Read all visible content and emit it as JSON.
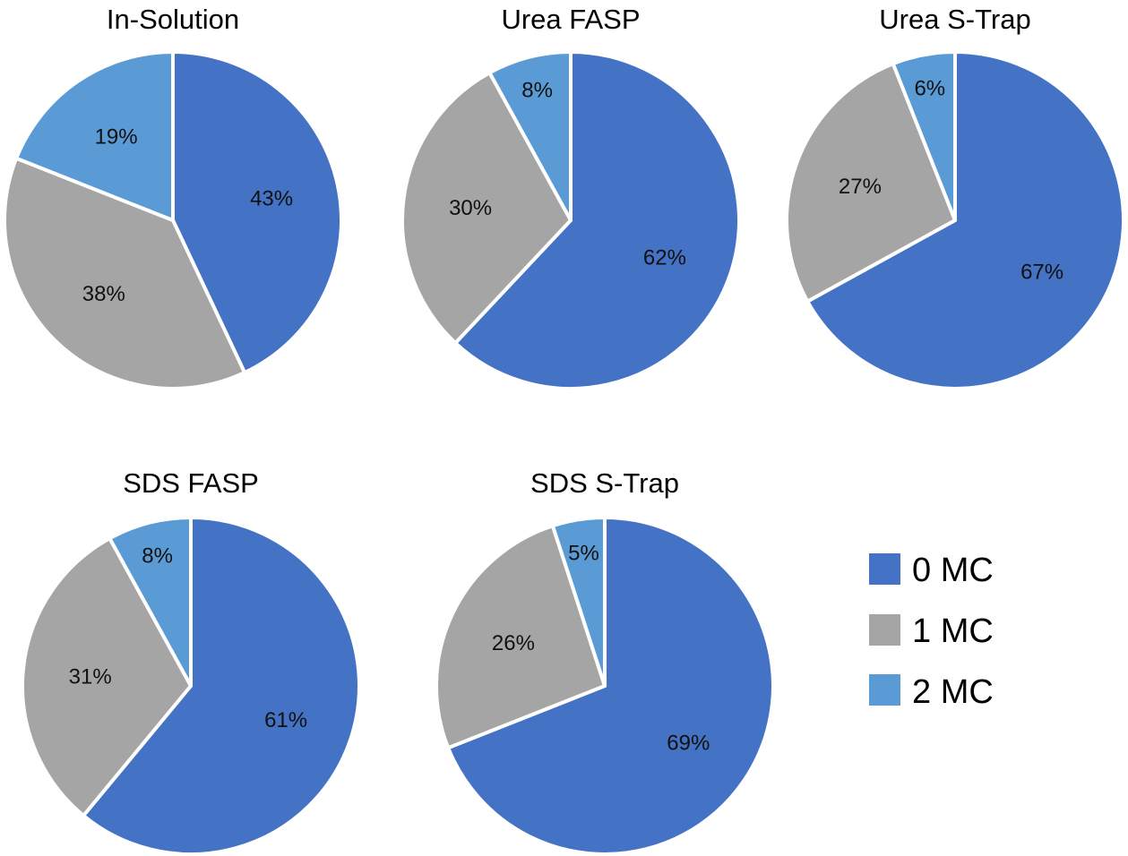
{
  "legend": {
    "items": [
      {
        "label": "0 MC",
        "color": "#4472C4"
      },
      {
        "label": "1 MC",
        "color": "#A5A5A5"
      },
      {
        "label": "2 MC",
        "color": "#5B9BD5"
      }
    ]
  },
  "chart_data": [
    {
      "type": "pie",
      "title": "In-Solution",
      "categories": [
        "0 MC",
        "1 MC",
        "2 MC"
      ],
      "values": [
        43,
        38,
        19
      ],
      "labels": [
        "43%",
        "38%",
        "19%"
      ]
    },
    {
      "type": "pie",
      "title": "Urea FASP",
      "categories": [
        "0 MC",
        "1 MC",
        "2 MC"
      ],
      "values": [
        62,
        30,
        8
      ],
      "labels": [
        "62%",
        "30%",
        "8%"
      ]
    },
    {
      "type": "pie",
      "title": "Urea S-Trap",
      "categories": [
        "0 MC",
        "1 MC",
        "2 MC"
      ],
      "values": [
        67,
        27,
        6
      ],
      "labels": [
        "67%",
        "27%",
        "6%"
      ]
    },
    {
      "type": "pie",
      "title": "SDS FASP",
      "categories": [
        "0 MC",
        "1 MC",
        "2 MC"
      ],
      "values": [
        61,
        31,
        8
      ],
      "labels": [
        "61%",
        "31%",
        "8%"
      ]
    },
    {
      "type": "pie",
      "title": "SDS S-Trap",
      "categories": [
        "0 MC",
        "1 MC",
        "2 MC"
      ],
      "values": [
        69,
        26,
        5
      ],
      "labels": [
        "69%",
        "26%",
        "5%"
      ]
    }
  ]
}
